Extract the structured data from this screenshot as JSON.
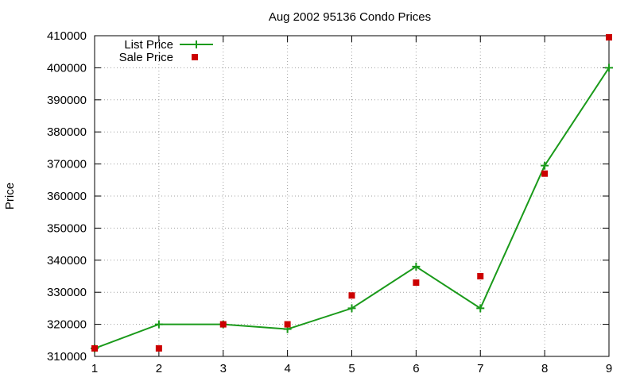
{
  "chart_data": {
    "type": "line",
    "title": "Aug 2002 95136 Condo Prices",
    "xlabel": "",
    "ylabel": "Price",
    "x": [
      1,
      2,
      3,
      4,
      5,
      6,
      7,
      8,
      9
    ],
    "xlim": [
      1,
      9
    ],
    "ylim": [
      310000,
      410000
    ],
    "xticks": [
      "1",
      "2",
      "3",
      "4",
      "5",
      "6",
      "7",
      "8",
      "9"
    ],
    "yticks": [
      "310000",
      "320000",
      "330000",
      "340000",
      "350000",
      "360000",
      "370000",
      "380000",
      "390000",
      "400000",
      "410000"
    ],
    "grid": true,
    "legend_position": "top-left",
    "series": [
      {
        "name": "List Price",
        "style": "line-with-plus-points",
        "color": "#1a9a1a",
        "values": [
          312500,
          320000,
          320000,
          318500,
          325000,
          338000,
          325000,
          369500,
          400000
        ]
      },
      {
        "name": "Sale Price",
        "style": "square-points",
        "color": "#cc0000",
        "values": [
          312500,
          312500,
          320000,
          320000,
          329000,
          333000,
          335000,
          367000,
          409500
        ]
      }
    ]
  }
}
